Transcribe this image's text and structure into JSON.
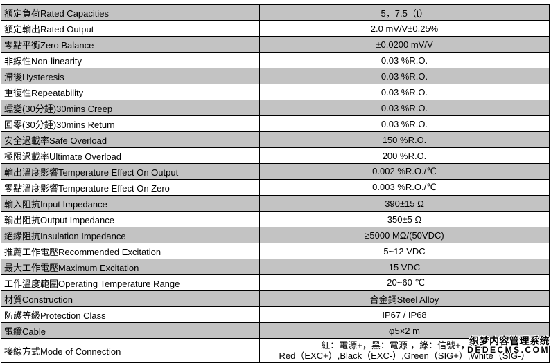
{
  "table": {
    "rows": [
      {
        "label": "額定負荷Rated Capacities",
        "value": "5，7.5（t）"
      },
      {
        "label": "額定輸出Rated Output",
        "value": "2.0 mV/V±0.25%"
      },
      {
        "label": "零點平衡Zero Balance",
        "value": "±0.0200 mV/V"
      },
      {
        "label": "非線性Non-linearity",
        "value": "0.03 %R.O."
      },
      {
        "label": "滯後Hysteresis",
        "value": "0.03 %R.O."
      },
      {
        "label": "重復性Repeatability",
        "value": "0.03 %R.O."
      },
      {
        "label": "蠕變(30分鍾)30mins Creep",
        "value": "0.03 %R.O."
      },
      {
        "label": "回零(30分鍾)30mins Return",
        "value": "0.03 %R.O."
      },
      {
        "label": "安全過載率Safe Overload",
        "value": "150 %R.O."
      },
      {
        "label": "極限過載率Ultimate Overload",
        "value": "200 %R.O."
      },
      {
        "label": "輸出溫度影響Temperature Effect On Output",
        "value": "0.002 %R.O./℃"
      },
      {
        "label": "零點溫度影響Temperature Effect On Zero",
        "value": "0.003 %R.O./℃"
      },
      {
        "label": "輸入阻抗Input Impedance",
        "value": "390±15 Ω"
      },
      {
        "label": "輸出阻抗Output Impedance",
        "value": "350±5 Ω"
      },
      {
        "label": "絕緣阻抗Insulation Impedance",
        "value": "≥5000 MΩ/(50VDC)"
      },
      {
        "label": "推薦工作電壓Recommended Excitation",
        "value": "5~12 VDC"
      },
      {
        "label": "最大工作電壓Maximum Excitation",
        "value": "15 VDC"
      },
      {
        "label": "工作溫度範圍Operating Temperature Range",
        "value": "-20~60 ℃"
      },
      {
        "label": "材質Construction",
        "value": "合金鋼Steel Alloy"
      },
      {
        "label": "防護等級Protection Class",
        "value": "IP67 / IP68"
      },
      {
        "label": "電纜Cable",
        "value": "φ5×2 m"
      },
      {
        "label": "接線方式Mode of Connection",
        "value_line1": "紅：電源+，黑：電源-，綠：信號+，白：",
        "value_line2": "Red（EXC+）,Black（EXC-）,Green（SIG+）,White（SIG-）"
      }
    ]
  },
  "watermark": {
    "line1": "织梦内容管理系统",
    "line2": "DEDECMS.COM"
  }
}
